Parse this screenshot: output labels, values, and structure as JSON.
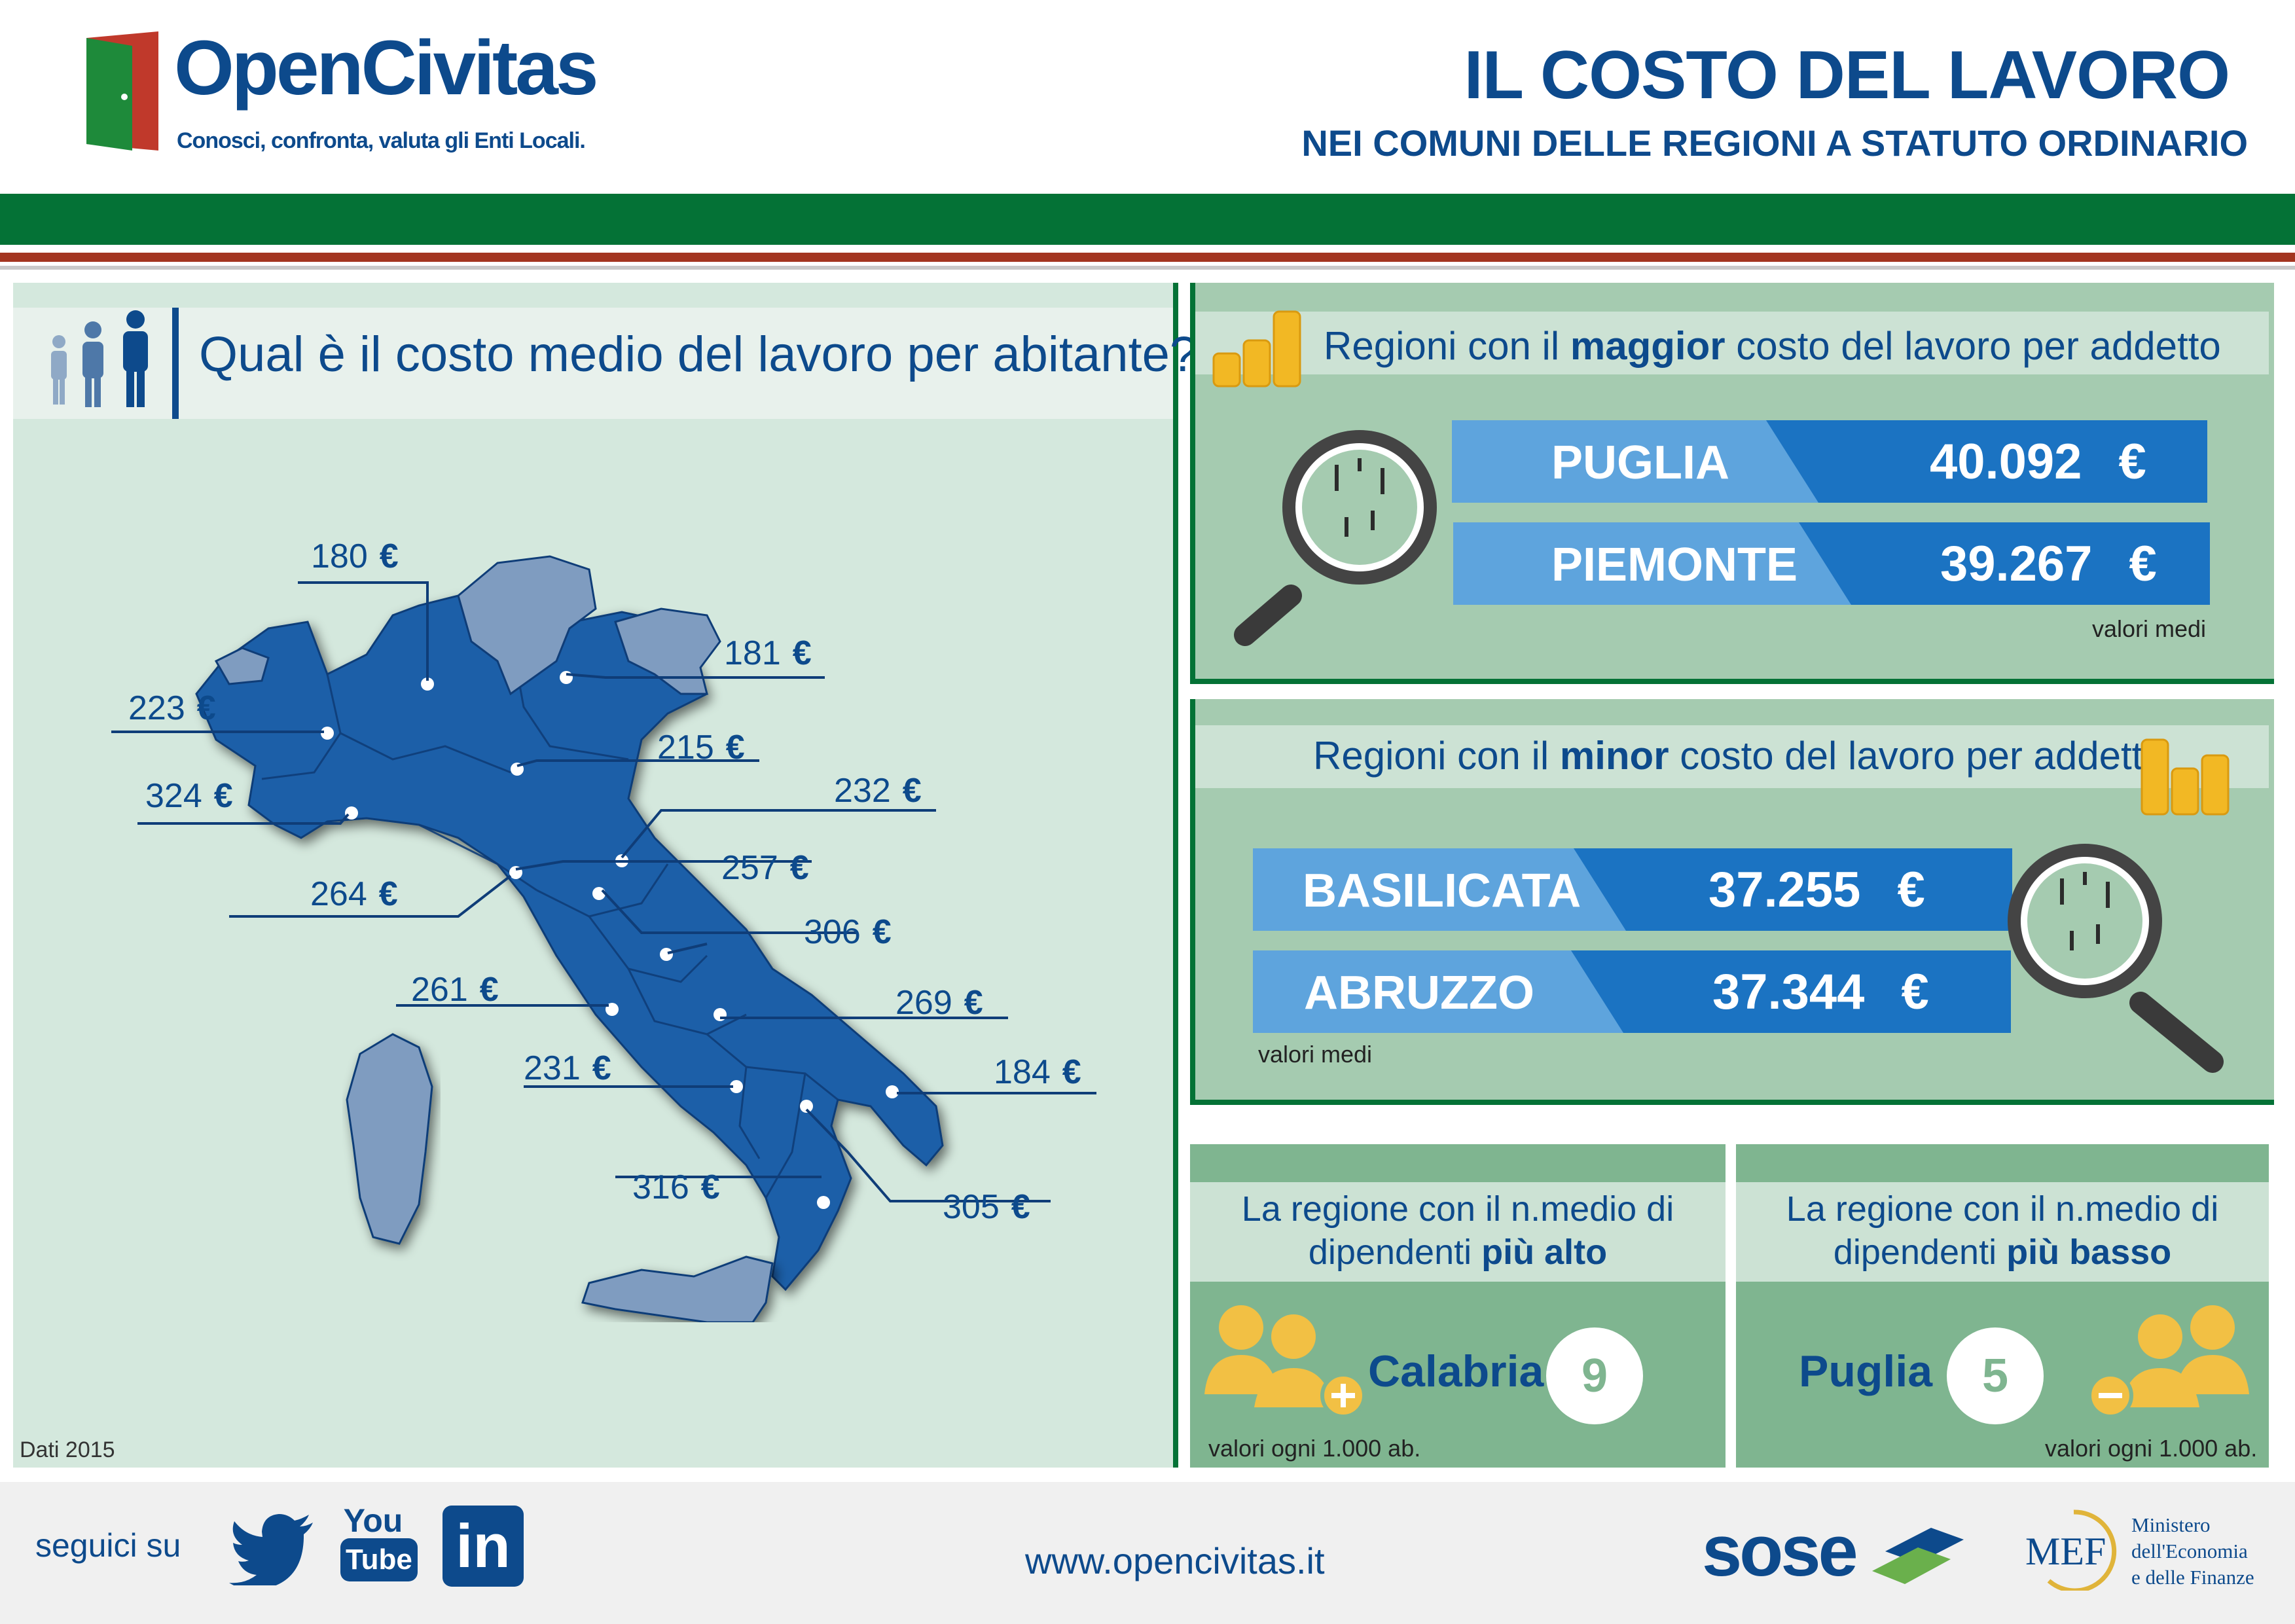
{
  "header": {
    "logo_name": "OpenCivitas",
    "logo_tagline": "Conosci, confronta, valuta gli Enti Locali.",
    "title": "IL COSTO DEL LAVORO",
    "subtitle": "NEI COMUNI DELLE REGIONI A STATUTO ORDINARIO"
  },
  "map_panel": {
    "question": "Qual è il costo medio del lavoro per abitante?",
    "labels": [
      {
        "value": "180",
        "unit": "€"
      },
      {
        "value": "181",
        "unit": "€"
      },
      {
        "value": "223",
        "unit": "€"
      },
      {
        "value": "215",
        "unit": "€"
      },
      {
        "value": "324",
        "unit": "€"
      },
      {
        "value": "232",
        "unit": "€"
      },
      {
        "value": "257",
        "unit": "€"
      },
      {
        "value": "264",
        "unit": "€"
      },
      {
        "value": "306",
        "unit": "€"
      },
      {
        "value": "261",
        "unit": "€"
      },
      {
        "value": "269",
        "unit": "€"
      },
      {
        "value": "184",
        "unit": "€"
      },
      {
        "value": "231",
        "unit": "€"
      },
      {
        "value": "316",
        "unit": "€"
      },
      {
        "value": "305",
        "unit": "€"
      }
    ],
    "source_note": "Dati 2015"
  },
  "max_panel": {
    "heading_pre": "Regioni con il ",
    "heading_bold": "maggior",
    "heading_post": " costo del lavoro per addetto",
    "rows": [
      {
        "region": "PUGLIA",
        "value": "40.092",
        "unit": "€"
      },
      {
        "region": "PIEMONTE",
        "value": "39.267",
        "unit": "€"
      }
    ],
    "note": "valori medi"
  },
  "min_panel": {
    "heading_pre": "Regioni con il ",
    "heading_bold": "minor",
    "heading_post": " costo del lavoro per addetto",
    "rows": [
      {
        "region": "BASILICATA",
        "value": "37.255",
        "unit": "€"
      },
      {
        "region": "ABRUZZO",
        "value": "37.344",
        "unit": "€"
      }
    ],
    "note": "valori medi"
  },
  "employees": {
    "high": {
      "line1": "La regione con il n.medio di",
      "line2_pre": "dipendenti ",
      "line2_bold": "più alto",
      "region": "Calabria",
      "value": "9",
      "note": "valori ogni 1.000 ab."
    },
    "low": {
      "line1": "La regione con il n.medio di",
      "line2_pre": "dipendenti ",
      "line2_bold": "più basso",
      "region": "Puglia",
      "value": "5",
      "note": "valori ogni 1.000 ab."
    }
  },
  "footer": {
    "follow_label": "seguici su",
    "youtube_line1": "You",
    "youtube_line2": "Tube",
    "linkedin_text": "in",
    "website": "www.opencivitas.it",
    "sose_name": "sose",
    "mef_abbr": "MEF",
    "mef_line1": "Ministero",
    "mef_line2": "dell'Economia",
    "mef_line3": "e delle Finanze"
  },
  "colors": {
    "navy": "#0d4a8c",
    "green": "#047236",
    "map_blue": "#1f5ea8",
    "map_gray": "#7f9cc0",
    "bar_light": "#5ea4dd",
    "bar_dark": "#1b73c2",
    "coin": "#f2b824"
  }
}
